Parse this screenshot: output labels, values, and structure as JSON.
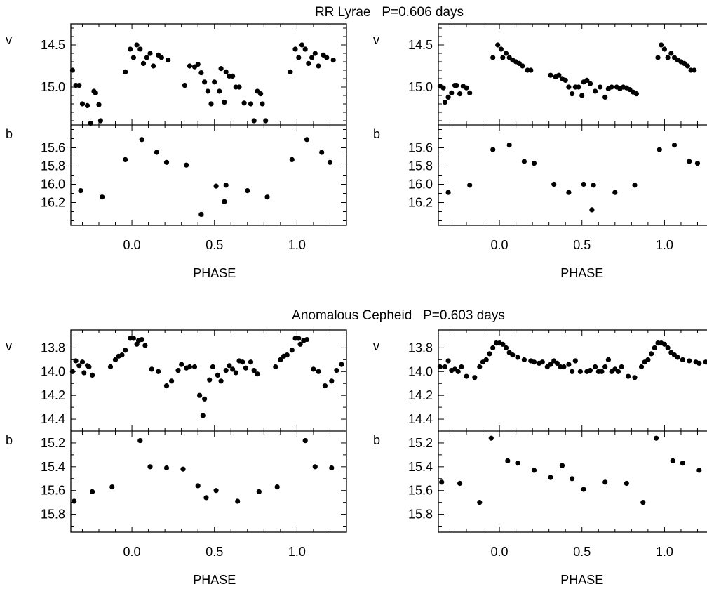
{
  "section_titles": {
    "top": "RR Lyrae   P=0.606 days",
    "bottom": "Anomalous Cepheid   P=0.603 days"
  },
  "colors": {
    "ink": "#000000",
    "background": "#ffffff"
  },
  "chart_data": [
    {
      "type": "scatter",
      "id": "rr-left",
      "xlabel": "PHASE",
      "xlim": [
        -0.37,
        1.3
      ],
      "xticks": [
        0.0,
        0.5,
        1.0
      ],
      "xtick_labels": [
        "0.0",
        "0.5",
        "1.0"
      ],
      "x_minor_step": 0.1,
      "panels": [
        {
          "band": "v",
          "ylim": [
            14.25,
            15.45
          ],
          "inverted": true,
          "yticks": [
            14.5,
            15.0
          ],
          "ytick_labels": [
            "14.5",
            "15.0"
          ],
          "y_minor_step": 0.1,
          "x": [
            -0.36,
            -0.34,
            -0.32,
            -0.3,
            -0.27,
            -0.25,
            -0.23,
            -0.22,
            -0.2,
            -0.19,
            -0.04,
            -0.01,
            0.01,
            0.03,
            0.05,
            0.07,
            0.09,
            0.11,
            0.13,
            0.16,
            0.18,
            0.22,
            0.32,
            0.35,
            0.38,
            0.4,
            0.42,
            0.44,
            0.46,
            0.48,
            0.5,
            0.53,
            0.54,
            0.56,
            0.57,
            0.59,
            0.61,
            0.63,
            0.65,
            0.68,
            0.72,
            0.74,
            0.76,
            0.78,
            0.79,
            0.81,
            0.96,
            0.99,
            1.01,
            1.03,
            1.05,
            1.07,
            1.09,
            1.11,
            1.13,
            1.16,
            1.18,
            1.22
          ],
          "y": [
            14.8,
            14.98,
            14.98,
            15.2,
            15.22,
            15.43,
            15.05,
            15.07,
            15.21,
            15.4,
            14.82,
            14.55,
            14.65,
            14.5,
            14.55,
            14.72,
            14.65,
            14.6,
            14.75,
            14.62,
            14.65,
            14.68,
            14.98,
            14.75,
            14.76,
            14.73,
            14.83,
            14.94,
            15.05,
            15.2,
            14.94,
            15.05,
            14.78,
            15.18,
            14.82,
            14.87,
            14.87,
            15.0,
            15.0,
            15.19,
            15.2,
            15.4,
            15.05,
            15.08,
            15.2,
            15.4,
            14.82,
            14.55,
            14.65,
            14.5,
            14.55,
            14.72,
            14.65,
            14.6,
            14.75,
            14.62,
            14.65,
            14.68
          ]
        },
        {
          "band": "b",
          "ylim": [
            15.35,
            16.45
          ],
          "inverted": true,
          "yticks": [
            15.6,
            15.8,
            16.0,
            16.2
          ],
          "ytick_labels": [
            "15.6",
            "15.8",
            "16.0",
            "16.2"
          ],
          "y_minor_step": 0.1,
          "x": [
            -0.31,
            -0.18,
            -0.04,
            0.06,
            0.15,
            0.21,
            0.33,
            0.42,
            0.51,
            0.56,
            0.57,
            0.7,
            0.82,
            0.97,
            1.06,
            1.15,
            1.2
          ],
          "y": [
            16.07,
            16.14,
            15.73,
            15.51,
            15.65,
            15.76,
            15.79,
            16.33,
            16.02,
            16.19,
            16.01,
            16.07,
            16.14,
            15.73,
            15.51,
            15.65,
            15.76
          ]
        }
      ]
    },
    {
      "type": "scatter",
      "id": "rr-right",
      "xlabel": "PHASE",
      "xlim": [
        -0.37,
        1.3
      ],
      "xticks": [
        0.0,
        0.5,
        1.0
      ],
      "xtick_labels": [
        "0.0",
        "0.5",
        "1.0"
      ],
      "x_minor_step": 0.1,
      "panels": [
        {
          "band": "v",
          "ylim": [
            14.25,
            15.45
          ],
          "inverted": true,
          "yticks": [
            14.5,
            15.0
          ],
          "ytick_labels": [
            "14.5",
            "15.0"
          ],
          "y_minor_step": 0.1,
          "x": [
            -0.36,
            -0.34,
            -0.33,
            -0.31,
            -0.29,
            -0.27,
            -0.26,
            -0.24,
            -0.22,
            -0.2,
            -0.18,
            -0.04,
            -0.01,
            0.01,
            0.02,
            0.04,
            0.06,
            0.08,
            0.1,
            0.12,
            0.14,
            0.17,
            0.19,
            0.31,
            0.34,
            0.36,
            0.38,
            0.4,
            0.42,
            0.44,
            0.46,
            0.48,
            0.5,
            0.51,
            0.53,
            0.55,
            0.58,
            0.61,
            0.64,
            0.66,
            0.68,
            0.71,
            0.73,
            0.75,
            0.77,
            0.79,
            0.81,
            0.83,
            0.96,
            0.98,
            1.0,
            1.02,
            1.04,
            1.06,
            1.08,
            1.1,
            1.12,
            1.14,
            1.16,
            1.18
          ],
          "y": [
            14.99,
            15.01,
            15.18,
            15.12,
            15.07,
            14.98,
            14.98,
            15.08,
            14.99,
            15.01,
            15.07,
            14.65,
            14.5,
            14.55,
            14.65,
            14.6,
            14.65,
            14.68,
            14.7,
            14.72,
            14.75,
            14.8,
            14.8,
            14.86,
            14.88,
            14.86,
            14.9,
            14.92,
            15.0,
            15.08,
            15.0,
            15.0,
            15.1,
            14.94,
            14.92,
            14.96,
            15.05,
            15.0,
            15.12,
            15.02,
            15.0,
            15.0,
            15.02,
            15.0,
            15.01,
            15.03,
            15.06,
            15.08,
            14.65,
            14.5,
            14.55,
            14.65,
            14.6,
            14.65,
            14.68,
            14.7,
            14.72,
            14.75,
            14.8,
            14.8
          ]
        },
        {
          "band": "b",
          "ylim": [
            15.35,
            16.45
          ],
          "inverted": true,
          "yticks": [
            15.6,
            15.8,
            16.0,
            16.2
          ],
          "ytick_labels": [
            "15.6",
            "15.8",
            "16.0",
            "16.2"
          ],
          "y_minor_step": 0.1,
          "x": [
            -0.31,
            -0.18,
            -0.04,
            0.06,
            0.15,
            0.21,
            0.33,
            0.42,
            0.51,
            0.56,
            0.57,
            0.7,
            0.82,
            0.97,
            1.06,
            1.15,
            1.2
          ],
          "y": [
            16.09,
            16.01,
            15.62,
            15.57,
            15.75,
            15.77,
            16.0,
            16.09,
            16.0,
            16.28,
            16.01,
            16.09,
            16.01,
            15.62,
            15.57,
            15.75,
            15.77
          ]
        }
      ]
    },
    {
      "type": "scatter",
      "id": "ac-left",
      "xlabel": "PHASE",
      "xlim": [
        -0.37,
        1.3
      ],
      "xticks": [
        0.0,
        0.5,
        1.0
      ],
      "xtick_labels": [
        "0.0",
        "0.5",
        "1.0"
      ],
      "x_minor_step": 0.1,
      "panels": [
        {
          "band": "v",
          "ylim": [
            13.65,
            14.5
          ],
          "inverted": true,
          "yticks": [
            13.8,
            14.0,
            14.2,
            14.4
          ],
          "ytick_labels": [
            "13.8",
            "14.0",
            "14.2",
            "14.4"
          ],
          "y_minor_step": 0.1,
          "x": [
            -0.36,
            -0.34,
            -0.32,
            -0.3,
            -0.29,
            -0.27,
            -0.26,
            -0.24,
            -0.13,
            -0.1,
            -0.08,
            -0.06,
            -0.04,
            -0.01,
            0.01,
            0.03,
            0.04,
            0.06,
            0.08,
            0.12,
            0.16,
            0.21,
            0.24,
            0.28,
            0.3,
            0.33,
            0.35,
            0.38,
            0.41,
            0.43,
            0.44,
            0.47,
            0.49,
            0.52,
            0.54,
            0.57,
            0.59,
            0.61,
            0.63,
            0.65,
            0.67,
            0.69,
            0.72,
            0.74,
            0.76,
            0.87,
            0.9,
            0.92,
            0.94,
            0.97,
            0.99,
            1.01,
            1.02,
            1.04,
            1.06,
            1.1,
            1.13,
            1.17,
            1.21,
            1.24,
            1.27
          ],
          "y": [
            14.0,
            13.91,
            13.95,
            13.92,
            14.01,
            13.95,
            13.96,
            14.03,
            13.96,
            13.9,
            13.87,
            13.86,
            13.82,
            13.72,
            13.72,
            13.77,
            13.74,
            13.73,
            13.78,
            13.98,
            14.0,
            14.12,
            14.08,
            13.99,
            13.94,
            13.97,
            13.96,
            13.96,
            14.2,
            14.37,
            14.23,
            14.07,
            13.96,
            14.03,
            14.08,
            13.99,
            13.95,
            13.98,
            14.01,
            13.91,
            13.92,
            13.97,
            13.92,
            13.99,
            14.02,
            13.96,
            13.9,
            13.87,
            13.86,
            13.82,
            13.72,
            13.72,
            13.77,
            13.74,
            13.73,
            13.98,
            14.0,
            14.12,
            14.08,
            13.99,
            13.94
          ]
        },
        {
          "band": "b",
          "ylim": [
            15.1,
            15.95
          ],
          "inverted": true,
          "yticks": [
            15.2,
            15.4,
            15.6,
            15.8
          ],
          "ytick_labels": [
            "15.2",
            "15.4",
            "15.6",
            "15.8"
          ],
          "y_minor_step": 0.1,
          "x": [
            -0.35,
            -0.24,
            -0.12,
            0.05,
            0.11,
            0.21,
            0.31,
            0.4,
            0.45,
            0.51,
            0.64,
            0.77,
            0.88,
            1.05,
            1.11,
            1.21
          ],
          "y": [
            15.69,
            15.61,
            15.57,
            15.18,
            15.4,
            15.41,
            15.42,
            15.56,
            15.66,
            15.6,
            15.69,
            15.61,
            15.57,
            15.18,
            15.4,
            15.41
          ]
        }
      ]
    },
    {
      "type": "scatter",
      "id": "ac-right",
      "xlabel": "PHASE",
      "xlim": [
        -0.37,
        1.3
      ],
      "xticks": [
        0.0,
        0.5,
        1.0
      ],
      "xtick_labels": [
        "0.0",
        "0.5",
        "1.0"
      ],
      "x_minor_step": 0.1,
      "panels": [
        {
          "band": "v",
          "ylim": [
            13.65,
            14.5
          ],
          "inverted": true,
          "yticks": [
            13.8,
            14.0,
            14.2,
            14.4
          ],
          "ytick_labels": [
            "13.8",
            "14.0",
            "14.2",
            "14.4"
          ],
          "y_minor_step": 0.1,
          "x": [
            -0.36,
            -0.33,
            -0.31,
            -0.29,
            -0.27,
            -0.25,
            -0.23,
            -0.2,
            -0.15,
            -0.12,
            -0.1,
            -0.08,
            -0.06,
            -0.04,
            -0.02,
            0.0,
            0.02,
            0.04,
            0.06,
            0.08,
            0.11,
            0.15,
            0.19,
            0.21,
            0.24,
            0.26,
            0.29,
            0.31,
            0.33,
            0.35,
            0.37,
            0.39,
            0.42,
            0.44,
            0.46,
            0.49,
            0.53,
            0.55,
            0.58,
            0.6,
            0.62,
            0.64,
            0.66,
            0.68,
            0.7,
            0.72,
            0.74,
            0.78,
            0.82,
            0.86,
            0.88,
            0.9,
            0.92,
            0.94,
            0.96,
            0.98,
            1.0,
            1.02,
            1.04,
            1.06,
            1.08,
            1.11,
            1.15,
            1.19,
            1.21,
            1.25,
            1.28
          ],
          "y": [
            13.96,
            13.96,
            13.91,
            13.99,
            13.98,
            14.0,
            13.96,
            14.04,
            14.05,
            13.96,
            13.92,
            13.9,
            13.85,
            13.8,
            13.76,
            13.76,
            13.77,
            13.8,
            13.84,
            13.86,
            13.88,
            13.9,
            13.91,
            13.92,
            13.93,
            13.92,
            13.96,
            13.94,
            13.91,
            13.93,
            13.96,
            13.96,
            13.94,
            14.0,
            13.91,
            14.0,
            14.0,
            13.99,
            13.96,
            14.0,
            14.0,
            13.96,
            13.9,
            14.0,
            13.98,
            14.0,
            13.96,
            14.04,
            14.05,
            13.96,
            13.92,
            13.9,
            13.85,
            13.8,
            13.76,
            13.76,
            13.77,
            13.8,
            13.84,
            13.86,
            13.88,
            13.9,
            13.91,
            13.92,
            13.93,
            13.92,
            13.96
          ]
        },
        {
          "band": "b",
          "ylim": [
            15.1,
            15.95
          ],
          "inverted": true,
          "yticks": [
            15.2,
            15.4,
            15.6,
            15.8
          ],
          "ytick_labels": [
            "15.2",
            "15.4",
            "15.6",
            "15.8"
          ],
          "y_minor_step": 0.1,
          "x": [
            -0.35,
            -0.24,
            -0.12,
            -0.05,
            0.05,
            0.11,
            0.21,
            0.31,
            0.38,
            0.44,
            0.51,
            0.64,
            0.77,
            0.87,
            0.95,
            1.05,
            1.11,
            1.21
          ],
          "y": [
            15.53,
            15.54,
            15.7,
            15.16,
            15.35,
            15.37,
            15.43,
            15.49,
            15.39,
            15.5,
            15.59,
            15.53,
            15.54,
            15.7,
            15.16,
            15.35,
            15.37,
            15.43
          ]
        }
      ]
    }
  ]
}
